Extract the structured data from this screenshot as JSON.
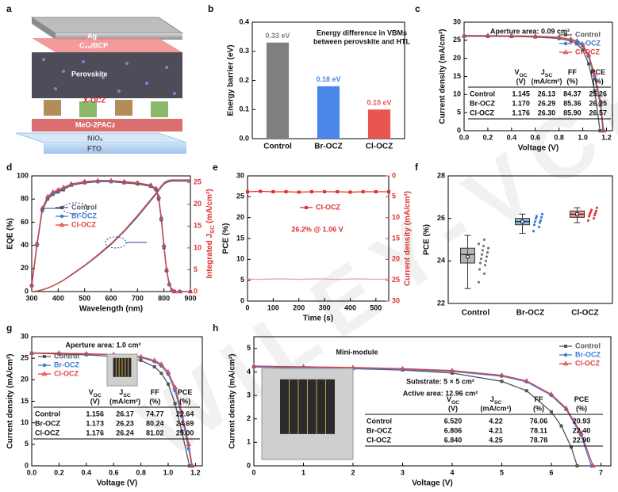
{
  "diagram": {
    "label": "a",
    "layers": [
      "Ag",
      "C₆₀/BCP",
      "Perovskite",
      "X-OCZ",
      "MeO-2PACz",
      "NiOₓ",
      "FTO"
    ]
  },
  "watermark": "WILEY-VCH",
  "chart_data": [
    {
      "type": "bar",
      "label": "b",
      "categories": [
        "Control",
        "Br-OCZ",
        "Cl-OCZ"
      ],
      "values": [
        0.33,
        0.18,
        0.1
      ],
      "value_labels": [
        "0.33 eV",
        "0.18 eV",
        "0.10 eV"
      ],
      "colors": [
        "#7f7f7f",
        "#4a86e8",
        "#e8564f"
      ],
      "ylabel": "Energy barrier (eV)",
      "ylim": [
        0,
        0.4
      ],
      "yticks": [
        {
          "value": 0,
          "label": "0.0"
        },
        0.1,
        0.2,
        0.3,
        0.4
      ],
      "annotations": [
        "Energy difference in VBMs",
        "between perovskite and HTL"
      ]
    },
    {
      "type": "line",
      "label": "c",
      "xlabel": "Voltage (V)",
      "ylabel": "Current density (mA/cm²)",
      "xlim": [
        0,
        1.25
      ],
      "ylim": [
        0,
        30
      ],
      "xticks": [
        {
          "value": 0,
          "label": "0.0"
        },
        0.2,
        0.4,
        0.6,
        0.8,
        {
          "value": 1,
          "label": "1.0"
        },
        1.2
      ],
      "yticks": [
        0,
        5,
        10,
        15,
        20,
        25,
        30
      ],
      "annotations": [
        "Aperture area: 0.09 cm²"
      ],
      "legend": "upper right",
      "series": [
        {
          "name": "Control",
          "color": "#555555",
          "marker": "square",
          "x": [
            0,
            0.2,
            0.4,
            0.6,
            0.8,
            0.9,
            0.95,
            1.0,
            1.05,
            1.1,
            1.145
          ],
          "values": [
            26.13,
            26.1,
            26.05,
            25.9,
            25.5,
            24.8,
            24.0,
            22.3,
            18.5,
            11,
            0
          ]
        },
        {
          "name": "Br-OCZ",
          "color": "#3a7bd5",
          "marker": "circle",
          "x": [
            0,
            0.2,
            0.4,
            0.6,
            0.8,
            0.9,
            0.95,
            1.0,
            1.05,
            1.1,
            1.15,
            1.17
          ],
          "values": [
            26.29,
            26.27,
            26.22,
            26.1,
            25.8,
            25.2,
            24.6,
            23.4,
            20.5,
            14.5,
            7,
            0
          ]
        },
        {
          "name": "Cl-OCZ",
          "color": "#e04040",
          "marker": "triangle",
          "x": [
            0,
            0.2,
            0.4,
            0.6,
            0.8,
            0.9,
            0.95,
            1.0,
            1.05,
            1.1,
            1.15,
            1.176
          ],
          "values": [
            26.3,
            26.28,
            26.24,
            26.12,
            25.85,
            25.3,
            24.8,
            23.7,
            21,
            15.5,
            8,
            0
          ]
        }
      ],
      "table": {
        "header": [
          {
            "top": [
              "V",
              {
                "sub": "OC"
              }
            ],
            "unit": "(V)"
          },
          {
            "top": [
              "J",
              {
                "sub": "SC"
              }
            ],
            "unit": "(mA/cm²)"
          },
          {
            "top": [
              "FF"
            ],
            "unit": "(%)"
          },
          {
            "top": [
              "PCE"
            ],
            "unit": "(%)"
          }
        ],
        "rows": [
          [
            "Control",
            "1.145",
            "26.13",
            "84.37",
            "25.26"
          ],
          [
            "Br-OCZ",
            "1.170",
            "26.29",
            "85.36",
            "26.25"
          ],
          [
            "Cl-OCZ",
            "1.176",
            "26.30",
            "85.90",
            "26.57"
          ]
        ]
      }
    },
    {
      "type": "line",
      "label": "d",
      "xlabel": "Wavelength (nm)",
      "ylabel": "EQE (%)",
      "y2label": [
        "Integrated ",
        "J",
        {
          "sub": "SC"
        },
        " (mA/cm²)"
      ],
      "y2color": "#e03030",
      "xlim": [
        300,
        900
      ],
      "ylim": [
        0,
        100
      ],
      "y2lim": [
        0,
        26.5
      ],
      "xticks": [
        300,
        400,
        500,
        600,
        700,
        800,
        900
      ],
      "yticks": [
        0,
        20,
        40,
        60,
        80,
        100
      ],
      "y2ticks": [
        0,
        5,
        10,
        15,
        20,
        25
      ],
      "legend": "center left",
      "x": [
        300,
        320,
        340,
        360,
        380,
        400,
        420,
        450,
        500,
        550,
        600,
        650,
        700,
        750,
        770,
        780,
        790,
        800,
        810,
        820,
        830,
        840,
        860,
        900
      ],
      "series": [
        {
          "name": "Control",
          "color": "#555555",
          "marker": "square",
          "values": [
            5,
            40,
            70,
            80,
            84,
            86,
            88,
            92,
            94,
            95,
            95,
            94,
            93,
            91,
            88,
            80,
            62,
            38,
            18,
            6,
            1,
            0,
            0,
            0
          ]
        },
        {
          "name": "Br-OCZ",
          "color": "#3a7bd5",
          "marker": "circle",
          "values": [
            5,
            41,
            71,
            81,
            85,
            87,
            89,
            93,
            95,
            95,
            95,
            95,
            94,
            92,
            89,
            81,
            63,
            39,
            19,
            6,
            1,
            0,
            0,
            0
          ]
        },
        {
          "name": "Cl-OCZ",
          "color": "#e04040",
          "marker": "triangle",
          "values": [
            6,
            42,
            72,
            82,
            86,
            88,
            90,
            93,
            95,
            96,
            96,
            95,
            94,
            92,
            89,
            82,
            64,
            40,
            19,
            7,
            1,
            0,
            0,
            0
          ]
        },
        {
          "color": "#555555",
          "axis": "y2",
          "values": [
            0,
            0.1,
            0.4,
            0.8,
            1.3,
            1.9,
            2.6,
            3.8,
            5.9,
            8.2,
            10.8,
            13.8,
            17.1,
            20.8,
            22.3,
            23.1,
            23.9,
            24.6,
            25.0,
            25.2,
            25.3,
            25.3,
            25.3,
            25.3
          ]
        },
        {
          "color": "#3a7bd5",
          "axis": "y2",
          "values": [
            0,
            0.1,
            0.4,
            0.8,
            1.3,
            1.9,
            2.6,
            3.8,
            5.9,
            8.3,
            10.9,
            13.9,
            17.2,
            20.9,
            22.4,
            23.2,
            24.0,
            24.7,
            25.1,
            25.3,
            25.4,
            25.4,
            25.4,
            25.4
          ]
        },
        {
          "color": "#e04040",
          "axis": "y2",
          "values": [
            0,
            0.1,
            0.4,
            0.8,
            1.3,
            1.9,
            2.6,
            3.9,
            6.0,
            8.4,
            11.0,
            14.0,
            17.4,
            21.1,
            22.6,
            23.4,
            24.2,
            24.9,
            25.3,
            25.5,
            25.6,
            25.6,
            25.6,
            25.6
          ]
        }
      ]
    },
    {
      "type": "line",
      "label": "e",
      "xlabel": "Time (s)",
      "ylabel": "PCE (%)",
      "y2label": "Current density (mA/cm²)",
      "y2color": "#e03030",
      "xlim": [
        0,
        550
      ],
      "ylim": [
        0,
        30
      ],
      "y2lim": [
        30,
        0
      ],
      "xticks": [
        0,
        100,
        200,
        300,
        400,
        500
      ],
      "yticks": [
        0,
        5,
        10,
        15,
        20,
        25,
        30
      ],
      "y2ticks": [
        0,
        5,
        10,
        15,
        20,
        25,
        30
      ],
      "legend": "upper center",
      "annotations": [
        "26.2% @ 1.06 V"
      ],
      "x": [
        0,
        50,
        100,
        150,
        200,
        250,
        300,
        350,
        400,
        450,
        500,
        550
      ],
      "series": [
        {
          "name": "Cl-OCZ",
          "color": "#e03030",
          "marker": "square",
          "values": [
            26.2,
            26.3,
            26.2,
            26.2,
            26.1,
            26.2,
            26.2,
            26.2,
            26.1,
            26.2,
            26.2,
            26.2
          ]
        },
        {
          "color": "#f29a9a",
          "axis": "y2",
          "values": [
            24.7,
            24.8,
            24.7,
            24.7,
            24.8,
            24.7,
            24.7,
            24.8,
            24.7,
            24.7,
            24.8,
            24.7
          ]
        }
      ]
    },
    {
      "type": "box",
      "label": "f",
      "ylabel": "PCE (%)",
      "categories": [
        "Control",
        "Br-OCZ",
        "Cl-OCZ"
      ],
      "colors": [
        "#777777",
        "#3a7bd5",
        "#e04040"
      ],
      "ylim": [
        22,
        28
      ],
      "yticks": [
        22,
        24,
        26,
        28
      ],
      "boxes": [
        {
          "min": 22.7,
          "q1": 23.9,
          "median": 24.3,
          "q3": 24.6,
          "max": 25.2,
          "mean": 24.2,
          "points": [
            23.0,
            23.4,
            23.6,
            23.8,
            23.9,
            24.0,
            24.1,
            24.2,
            24.3,
            24.4,
            24.5,
            24.6,
            24.7,
            24.8,
            25.0
          ]
        },
        {
          "min": 25.3,
          "q1": 25.7,
          "median": 25.85,
          "q3": 26.0,
          "max": 26.2,
          "mean": 25.85,
          "points": [
            25.4,
            25.6,
            25.7,
            25.8,
            25.85,
            25.9,
            26.0,
            26.05,
            26.1,
            26.2
          ]
        },
        {
          "min": 25.8,
          "q1": 26.05,
          "median": 26.2,
          "q3": 26.35,
          "max": 26.5,
          "mean": 26.2,
          "points": [
            25.9,
            26.0,
            26.1,
            26.15,
            26.2,
            26.25,
            26.3,
            26.35,
            26.4,
            26.5
          ]
        }
      ]
    },
    {
      "type": "line",
      "label": "g",
      "xlabel": "Voltage (V)",
      "ylabel": "Current density (mA/cm²)",
      "xlim": [
        0,
        1.25
      ],
      "ylim": [
        0,
        30
      ],
      "xticks": [
        {
          "value": 0,
          "label": "0.0"
        },
        0.2,
        0.4,
        0.6,
        0.8,
        {
          "value": 1,
          "label": "1.0"
        },
        1.2
      ],
      "yticks": [
        0,
        5,
        10,
        15,
        20,
        25,
        30
      ],
      "annotations": [
        "Aperture area: 1.0 cm²"
      ],
      "legend": "upper left",
      "series": [
        {
          "name": "Control",
          "color": "#555555",
          "marker": "square",
          "x": [
            0,
            0.2,
            0.4,
            0.6,
            0.8,
            0.9,
            0.95,
            1.0,
            1.05,
            1.1,
            1.156
          ],
          "values": [
            26.17,
            26.0,
            25.8,
            25.4,
            24.5,
            23.0,
            21.5,
            19.0,
            14.5,
            8,
            0
          ]
        },
        {
          "name": "Br-OCZ",
          "color": "#3a7bd5",
          "marker": "circle",
          "x": [
            0,
            0.2,
            0.4,
            0.6,
            0.8,
            0.9,
            0.95,
            1.0,
            1.05,
            1.1,
            1.15,
            1.173
          ],
          "values": [
            26.23,
            26.15,
            26.0,
            25.8,
            25.2,
            24.2,
            23.2,
            21.3,
            17.5,
            11.5,
            4,
            0
          ]
        },
        {
          "name": "Cl-OCZ",
          "color": "#e04040",
          "marker": "triangle",
          "x": [
            0,
            0.2,
            0.4,
            0.6,
            0.8,
            0.9,
            0.95,
            1.0,
            1.05,
            1.1,
            1.15,
            1.176
          ],
          "values": [
            26.24,
            26.18,
            26.05,
            25.85,
            25.35,
            24.5,
            23.6,
            21.8,
            18.2,
            12.5,
            5,
            0
          ]
        }
      ],
      "table": {
        "header": [
          {
            "top": [
              "V",
              {
                "sub": "OC"
              }
            ],
            "unit": "(V)"
          },
          {
            "top": [
              "J",
              {
                "sub": "SC"
              }
            ],
            "unit": "(mA/cm²)"
          },
          {
            "top": [
              "FF"
            ],
            "unit": "(%)"
          },
          {
            "top": [
              "PCE"
            ],
            "unit": "(%)"
          }
        ],
        "rows": [
          [
            "Control",
            "1.156",
            "26.17",
            "74.77",
            "22.64"
          ],
          [
            "Br-OCZ",
            "1.173",
            "26.23",
            "80.24",
            "24.69"
          ],
          [
            "Cl-OCZ",
            "1.176",
            "26.24",
            "81.02",
            "25.00"
          ]
        ]
      }
    },
    {
      "type": "line",
      "label": "h",
      "xlabel": "Voltage (V)",
      "ylabel": "Current density (mA/cm²)",
      "xlim": [
        0,
        7.2
      ],
      "ylim": [
        0,
        5.5
      ],
      "xticks": [
        0,
        1,
        2,
        3,
        4,
        5,
        6,
        7
      ],
      "yticks": [
        0,
        1,
        2,
        3,
        4,
        5
      ],
      "annotations": [
        "Mini-module",
        "Substrate: 5 × 5 cm²",
        "Active area: 12.96 cm²"
      ],
      "legend": "upper right",
      "series": [
        {
          "name": "Control",
          "color": "#555555",
          "marker": "square",
          "x": [
            0,
            1,
            2,
            3,
            4,
            5,
            5.5,
            6,
            6.2,
            6.4,
            6.52
          ],
          "values": [
            4.22,
            4.18,
            4.14,
            4.08,
            3.95,
            3.6,
            3.2,
            2.3,
            1.7,
            0.8,
            0
          ]
        },
        {
          "name": "Br-OCZ",
          "color": "#3a7bd5",
          "marker": "circle",
          "x": [
            0,
            1,
            2,
            3,
            4,
            5,
            5.5,
            6,
            6.3,
            6.6,
            6.806
          ],
          "values": [
            4.21,
            4.18,
            4.15,
            4.1,
            4.02,
            3.82,
            3.58,
            3.0,
            2.4,
            1.3,
            0
          ]
        },
        {
          "name": "Cl-OCZ",
          "color": "#e04040",
          "marker": "triangle",
          "x": [
            0,
            1,
            2,
            3,
            4,
            5,
            5.5,
            6,
            6.3,
            6.6,
            6.84
          ],
          "values": [
            4.25,
            4.22,
            4.19,
            4.14,
            4.06,
            3.86,
            3.62,
            3.05,
            2.45,
            1.4,
            0
          ]
        }
      ],
      "table": {
        "header": [
          {
            "top": [
              "V",
              {
                "sub": "OC"
              }
            ],
            "unit": "(V)"
          },
          {
            "top": [
              "J",
              {
                "sub": "SC"
              }
            ],
            "unit": "(mA/cm²)"
          },
          {
            "top": [
              "FF"
            ],
            "unit": "(%)"
          },
          {
            "top": [
              "PCE"
            ],
            "unit": "(%)"
          }
        ],
        "rows": [
          [
            "Control",
            "6.520",
            "4.22",
            "76.06",
            "20.93"
          ],
          [
            "Br-OCZ",
            "6.806",
            "4.21",
            "78.11",
            "22.40"
          ],
          [
            "Cl-OCZ",
            "6.840",
            "4.25",
            "78.78",
            "22.90"
          ]
        ]
      }
    }
  ]
}
